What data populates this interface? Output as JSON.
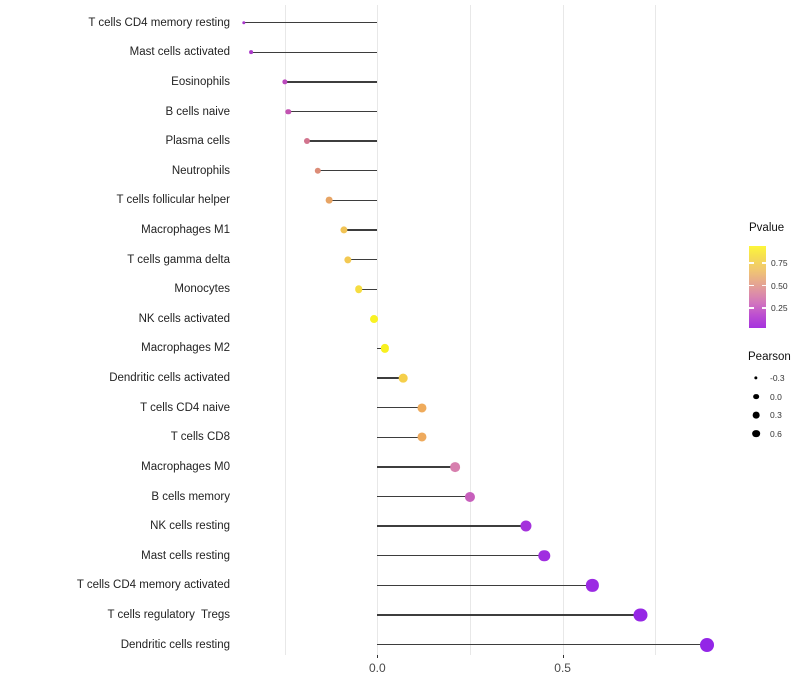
{
  "chart_data": {
    "type": "lollipop",
    "title": "",
    "xlabel": "",
    "ylabel": "",
    "xlim": [
      -0.38,
      0.92
    ],
    "grid": "vertical-only",
    "x_gridline_values": [
      -0.25,
      0,
      0.25,
      0.5,
      0.75
    ],
    "x_axis": {
      "ticks": [
        {
          "value": 0.0,
          "label": "0.0"
        },
        {
          "value": 0.5,
          "label": "0.5"
        }
      ]
    },
    "rows": [
      {
        "label": "T cells CD4 memory resting",
        "pearson": -0.36,
        "pvalue_color": "#a838ca"
      },
      {
        "label": "Mast cells activated",
        "pearson": -0.34,
        "pvalue_color": "#ab3ac8"
      },
      {
        "label": "Eosinophils",
        "pearson": -0.25,
        "pvalue_color": "#bb49bd"
      },
      {
        "label": "B cells naive",
        "pearson": -0.24,
        "pvalue_color": "#c253b1"
      },
      {
        "label": "Plasma cells",
        "pearson": -0.19,
        "pvalue_color": "#d2748e"
      },
      {
        "label": "Neutrophils",
        "pearson": -0.16,
        "pvalue_color": "#dc8c77"
      },
      {
        "label": "T cells follicular helper",
        "pearson": -0.13,
        "pvalue_color": "#e7a464"
      },
      {
        "label": "Macrophages M1",
        "pearson": -0.09,
        "pvalue_color": "#f1c354"
      },
      {
        "label": "T cells gamma delta",
        "pearson": -0.08,
        "pvalue_color": "#f3c952"
      },
      {
        "label": "Monocytes",
        "pearson": -0.05,
        "pvalue_color": "#f6dd41"
      },
      {
        "label": "NK cells activated",
        "pearson": -0.01,
        "pvalue_color": "#f9f223"
      },
      {
        "label": "Macrophages M2",
        "pearson": 0.02,
        "pvalue_color": "#f8f01f"
      },
      {
        "label": "Dendritic cells activated",
        "pearson": 0.07,
        "pvalue_color": "#f5cf4a"
      },
      {
        "label": "T cells CD4 naive",
        "pearson": 0.12,
        "pvalue_color": "#efab5b"
      },
      {
        "label": "T cells CD8",
        "pearson": 0.12,
        "pvalue_color": "#eeaa5d"
      },
      {
        "label": "Macrophages M0",
        "pearson": 0.21,
        "pvalue_color": "#d77fae"
      },
      {
        "label": "B cells memory",
        "pearson": 0.25,
        "pvalue_color": "#c75fbc"
      },
      {
        "label": "NK cells resting",
        "pearson": 0.4,
        "pvalue_color": "#a432dc"
      },
      {
        "label": "Mast cells resting",
        "pearson": 0.45,
        "pvalue_color": "#a02ee0"
      },
      {
        "label": "T cells CD4 memory activated",
        "pearson": 0.58,
        "pvalue_color": "#9b2ae3"
      },
      {
        "label": "T cells regulatory  Tregs",
        "pearson": 0.71,
        "pvalue_color": "#9628e5"
      },
      {
        "label": "Dendritic cells resting",
        "pearson": 0.89,
        "pvalue_color": "#9326e7"
      }
    ],
    "legend": {
      "pvalue": {
        "title": "Pvalue",
        "tick_labels": [
          "0.75",
          "0.50",
          "0.25"
        ],
        "gradient_top_color": "#fdf63a",
        "gradient_bottom_color": "#a532de"
      },
      "pearson": {
        "title": "Pearson",
        "size_labels": [
          "-0.3",
          "0.0",
          "0.3",
          "0.6"
        ],
        "dot_color": "#000000"
      }
    },
    "style": {
      "stem_color": "#3d3d3d",
      "gridline_color": "#e8e8e8",
      "axis_text_color": "#4a4a4a",
      "label_text_color": "#232323",
      "background": "#ffffff"
    }
  }
}
